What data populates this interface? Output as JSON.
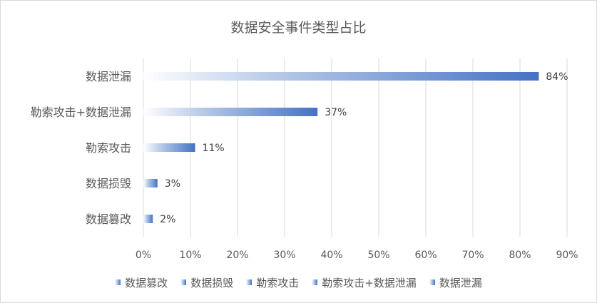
{
  "chart_data": {
    "type": "bar",
    "orientation": "horizontal",
    "title": "数据安全事件类型占比",
    "categories": [
      "数据泄漏",
      "勒索攻击+数据泄漏",
      "勒索攻击",
      "数据损毁",
      "数据篡改"
    ],
    "values": [
      84,
      37,
      11,
      3,
      2
    ],
    "data_labels": [
      "84%",
      "37%",
      "11%",
      "3%",
      "2%"
    ],
    "xlim": [
      0,
      90
    ],
    "x_ticks": [
      "0%",
      "10%",
      "20%",
      "30%",
      "40%",
      "50%",
      "60%",
      "70%",
      "80%",
      "90%"
    ],
    "grid": true,
    "legend_position": "bottom",
    "legend": [
      "数据篡改",
      "数据损毁",
      "勒索攻击",
      "勒索攻击+数据泄漏",
      "数据泄漏"
    ],
    "bar_color": "#4472c4",
    "bar_fill": "gradient from white to blue"
  }
}
